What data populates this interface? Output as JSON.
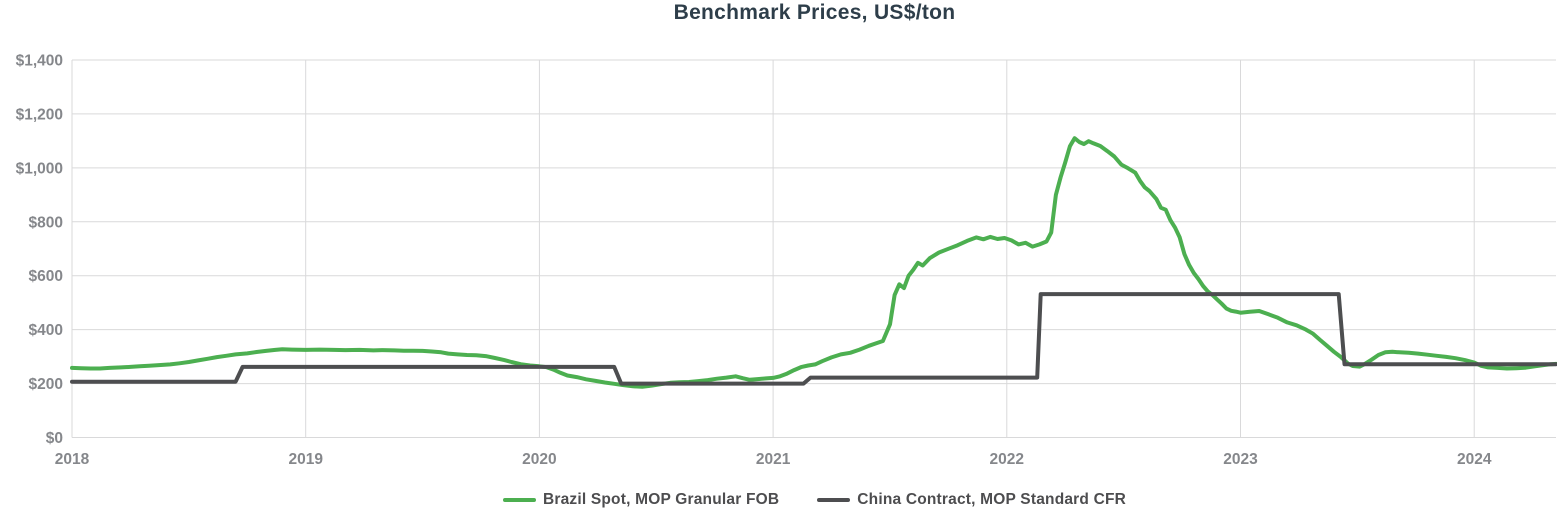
{
  "title": "Benchmark Prices, US$/ton",
  "colors": {
    "title_text": "#2e3e4a",
    "tick_text": "#85878b",
    "legend_text": "#4d4d4f",
    "grid": "#d9d9da",
    "brazil_green": "#4CAF50",
    "china_gray": "#4D4E50",
    "background": "#ffffff"
  },
  "chart_data": {
    "type": "line",
    "title": "Benchmark Prices, US$/ton",
    "grid": true,
    "legend_position": "bottom",
    "x_axis": {
      "min": 2018,
      "max": 2024.35,
      "ticks": [
        2018,
        2019,
        2020,
        2021,
        2022,
        2023,
        2024
      ],
      "labels": [
        "2018",
        "2019",
        "2020",
        "2021",
        "2022",
        "2023",
        "2024"
      ]
    },
    "y_axis": {
      "min": 0,
      "max": 1400,
      "ticks": [
        0,
        200,
        400,
        600,
        800,
        1000,
        1200,
        1400
      ],
      "labels": [
        "$0",
        "$200",
        "$400",
        "$600",
        "$800",
        "$1,000",
        "$1,200",
        "$1,400"
      ]
    },
    "series": [
      {
        "name": "Brazil Spot, MOP Granular FOB",
        "color": "#4CAF50",
        "points": [
          [
            2018.0,
            258
          ],
          [
            2018.04,
            257
          ],
          [
            2018.08,
            256
          ],
          [
            2018.12,
            256
          ],
          [
            2018.16,
            258
          ],
          [
            2018.21,
            260
          ],
          [
            2018.25,
            262
          ],
          [
            2018.29,
            264
          ],
          [
            2018.33,
            266
          ],
          [
            2018.38,
            269
          ],
          [
            2018.42,
            271
          ],
          [
            2018.46,
            275
          ],
          [
            2018.5,
            280
          ],
          [
            2018.54,
            286
          ],
          [
            2018.58,
            292
          ],
          [
            2018.62,
            298
          ],
          [
            2018.66,
            303
          ],
          [
            2018.7,
            308
          ],
          [
            2018.75,
            312
          ],
          [
            2018.79,
            317
          ],
          [
            2018.83,
            321
          ],
          [
            2018.87,
            325
          ],
          [
            2018.9,
            327
          ],
          [
            2018.94,
            326
          ],
          [
            2019.0,
            325
          ],
          [
            2019.06,
            326
          ],
          [
            2019.12,
            325
          ],
          [
            2019.17,
            324
          ],
          [
            2019.23,
            325
          ],
          [
            2019.29,
            323
          ],
          [
            2019.33,
            324
          ],
          [
            2019.38,
            323
          ],
          [
            2019.42,
            322
          ],
          [
            2019.46,
            322
          ],
          [
            2019.5,
            321
          ],
          [
            2019.54,
            319
          ],
          [
            2019.58,
            316
          ],
          [
            2019.61,
            311
          ],
          [
            2019.65,
            308
          ],
          [
            2019.69,
            306
          ],
          [
            2019.73,
            305
          ],
          [
            2019.77,
            302
          ],
          [
            2019.81,
            295
          ],
          [
            2019.85,
            287
          ],
          [
            2019.88,
            280
          ],
          [
            2019.92,
            272
          ],
          [
            2019.96,
            267
          ],
          [
            2020.0,
            264
          ],
          [
            2020.03,
            261
          ],
          [
            2020.06,
            252
          ],
          [
            2020.09,
            240
          ],
          [
            2020.12,
            230
          ],
          [
            2020.16,
            224
          ],
          [
            2020.2,
            216
          ],
          [
            2020.24,
            210
          ],
          [
            2020.28,
            204
          ],
          [
            2020.32,
            199
          ],
          [
            2020.36,
            194
          ],
          [
            2020.4,
            190
          ],
          [
            2020.44,
            188
          ],
          [
            2020.48,
            192
          ],
          [
            2020.52,
            198
          ],
          [
            2020.56,
            203
          ],
          [
            2020.6,
            205
          ],
          [
            2020.64,
            206
          ],
          [
            2020.68,
            209
          ],
          [
            2020.72,
            213
          ],
          [
            2020.76,
            218
          ],
          [
            2020.8,
            222
          ],
          [
            2020.84,
            227
          ],
          [
            2020.87,
            220
          ],
          [
            2020.9,
            214
          ],
          [
            2020.94,
            217
          ],
          [
            2020.97,
            219
          ],
          [
            2021.0,
            221
          ],
          [
            2021.03,
            227
          ],
          [
            2021.06,
            237
          ],
          [
            2021.09,
            250
          ],
          [
            2021.12,
            261
          ],
          [
            2021.15,
            267
          ],
          [
            2021.18,
            271
          ],
          [
            2021.21,
            283
          ],
          [
            2021.25,
            297
          ],
          [
            2021.29,
            308
          ],
          [
            2021.33,
            314
          ],
          [
            2021.37,
            326
          ],
          [
            2021.41,
            340
          ],
          [
            2021.44,
            349
          ],
          [
            2021.47,
            358
          ],
          [
            2021.5,
            420
          ],
          [
            2021.52,
            528
          ],
          [
            2021.54,
            568
          ],
          [
            2021.56,
            554
          ],
          [
            2021.58,
            600
          ],
          [
            2021.6,
            622
          ],
          [
            2021.62,
            648
          ],
          [
            2021.64,
            638
          ],
          [
            2021.67,
            665
          ],
          [
            2021.71,
            686
          ],
          [
            2021.75,
            700
          ],
          [
            2021.79,
            713
          ],
          [
            2021.83,
            729
          ],
          [
            2021.87,
            742
          ],
          [
            2021.9,
            735
          ],
          [
            2021.93,
            744
          ],
          [
            2021.96,
            736
          ],
          [
            2021.99,
            740
          ],
          [
            2022.02,
            731
          ],
          [
            2022.05,
            716
          ],
          [
            2022.08,
            722
          ],
          [
            2022.11,
            708
          ],
          [
            2022.14,
            716
          ],
          [
            2022.17,
            727
          ],
          [
            2022.19,
            760
          ],
          [
            2022.21,
            900
          ],
          [
            2022.23,
            965
          ],
          [
            2022.25,
            1020
          ],
          [
            2022.27,
            1080
          ],
          [
            2022.29,
            1110
          ],
          [
            2022.31,
            1096
          ],
          [
            2022.33,
            1088
          ],
          [
            2022.35,
            1099
          ],
          [
            2022.37,
            1091
          ],
          [
            2022.4,
            1081
          ],
          [
            2022.43,
            1062
          ],
          [
            2022.46,
            1042
          ],
          [
            2022.49,
            1012
          ],
          [
            2022.52,
            998
          ],
          [
            2022.55,
            982
          ],
          [
            2022.57,
            952
          ],
          [
            2022.59,
            928
          ],
          [
            2022.61,
            914
          ],
          [
            2022.64,
            884
          ],
          [
            2022.66,
            852
          ],
          [
            2022.68,
            845
          ],
          [
            2022.7,
            806
          ],
          [
            2022.72,
            778
          ],
          [
            2022.74,
            742
          ],
          [
            2022.76,
            680
          ],
          [
            2022.78,
            640
          ],
          [
            2022.8,
            610
          ],
          [
            2022.82,
            588
          ],
          [
            2022.84,
            562
          ],
          [
            2022.86,
            542
          ],
          [
            2022.88,
            528
          ],
          [
            2022.9,
            512
          ],
          [
            2022.92,
            496
          ],
          [
            2022.94,
            478
          ],
          [
            2022.96,
            470
          ],
          [
            2022.98,
            467
          ],
          [
            2023.0,
            463
          ],
          [
            2023.04,
            466
          ],
          [
            2023.08,
            469
          ],
          [
            2023.12,
            457
          ],
          [
            2023.16,
            444
          ],
          [
            2023.2,
            427
          ],
          [
            2023.24,
            416
          ],
          [
            2023.28,
            400
          ],
          [
            2023.31,
            385
          ],
          [
            2023.34,
            362
          ],
          [
            2023.37,
            340
          ],
          [
            2023.4,
            318
          ],
          [
            2023.43,
            298
          ],
          [
            2023.46,
            274
          ],
          [
            2023.48,
            265
          ],
          [
            2023.51,
            263
          ],
          [
            2023.53,
            272
          ],
          [
            2023.56,
            288
          ],
          [
            2023.59,
            306
          ],
          [
            2023.62,
            316
          ],
          [
            2023.65,
            318
          ],
          [
            2023.68,
            316
          ],
          [
            2023.72,
            314
          ],
          [
            2023.76,
            311
          ],
          [
            2023.8,
            307
          ],
          [
            2023.84,
            303
          ],
          [
            2023.88,
            299
          ],
          [
            2023.92,
            294
          ],
          [
            2023.96,
            287
          ],
          [
            2024.0,
            278
          ],
          [
            2024.03,
            266
          ],
          [
            2024.06,
            260
          ],
          [
            2024.1,
            258
          ],
          [
            2024.14,
            256
          ],
          [
            2024.18,
            257
          ],
          [
            2024.22,
            259
          ],
          [
            2024.26,
            264
          ],
          [
            2024.3,
            269
          ],
          [
            2024.33,
            272
          ],
          [
            2024.35,
            273
          ]
        ]
      },
      {
        "name": "China Contract, MOP Standard CFR",
        "color": "#4D4E50",
        "points": [
          [
            2018.0,
            207
          ],
          [
            2018.7,
            207
          ],
          [
            2018.73,
            262
          ],
          [
            2020.32,
            262
          ],
          [
            2020.35,
            200
          ],
          [
            2021.13,
            200
          ],
          [
            2021.16,
            222
          ],
          [
            2022.13,
            222
          ],
          [
            2022.145,
            532
          ],
          [
            2023.42,
            532
          ],
          [
            2023.445,
            272
          ],
          [
            2024.35,
            272
          ]
        ]
      }
    ]
  }
}
